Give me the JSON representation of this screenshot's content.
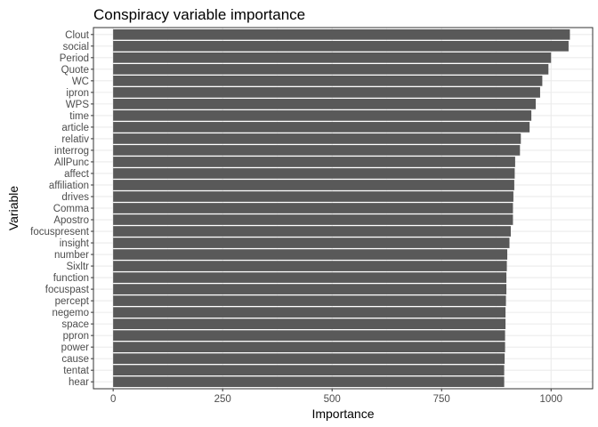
{
  "chart_data": {
    "type": "bar",
    "orientation": "horizontal",
    "title": "Conspiracy variable importance",
    "xlabel": "Importance",
    "ylabel": "Variable",
    "xlim": [
      -45,
      1095
    ],
    "xticks": [
      0,
      250,
      500,
      750,
      1000
    ],
    "grid": true,
    "theme": "bw",
    "bar_color": "#595959",
    "categories": [
      "Clout",
      "social",
      "Period",
      "Quote",
      "WC",
      "ipron",
      "WPS",
      "time",
      "article",
      "relativ",
      "interrog",
      "AllPunc",
      "affect",
      "affiliation",
      "drives",
      "Comma",
      "Apostro",
      "focuspresent",
      "insight",
      "number",
      "Sixltr",
      "function",
      "focuspast",
      "percept",
      "negemo",
      "space",
      "ppron",
      "power",
      "cause",
      "tentat",
      "hear"
    ],
    "values": [
      1043,
      1040,
      1000,
      994,
      980,
      975,
      965,
      955,
      951,
      931,
      929,
      918,
      917,
      916,
      914,
      913,
      913,
      908,
      905,
      900,
      899,
      898,
      898,
      897,
      896,
      896,
      895,
      895,
      894,
      893,
      893
    ]
  }
}
